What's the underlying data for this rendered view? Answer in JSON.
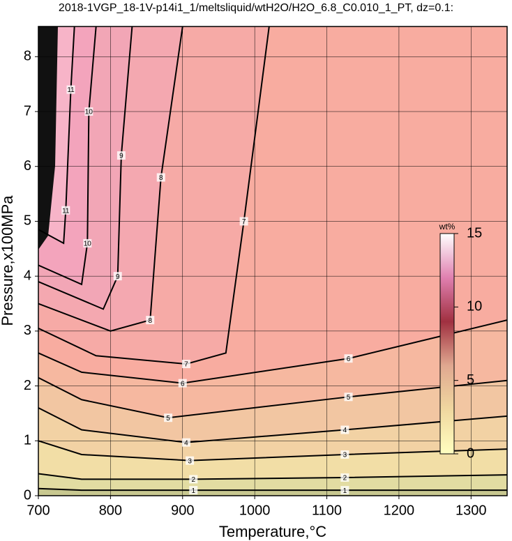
{
  "chart_data": {
    "type": "contour",
    "title": "2018-1VGP_18-1V-p14i1_1/meltsliquid/wtH2O/H2O_6.8_C0.010_1_PT, dz=0.1:",
    "x_label": "Temperature,°C",
    "y_label": "Pressure,x100MPa",
    "xlim": [
      700,
      1350
    ],
    "ylim": [
      0,
      8.55
    ],
    "xticks": [
      700,
      800,
      900,
      1000,
      1100,
      1200,
      1300
    ],
    "yticks": [
      0,
      1,
      2,
      3,
      4,
      5,
      6,
      7,
      8
    ],
    "grid": true,
    "background": "#f7b4c8",
    "contours": [
      {
        "level": 11,
        "color": "#f3a4bc",
        "x": [
          700,
          735,
          738,
          745,
          750
        ],
        "y": [
          4.85,
          4.6,
          5.2,
          7.4,
          8.55
        ]
      },
      {
        "level": 10,
        "color": "#f2a6b6",
        "x": [
          700,
          760,
          768,
          770,
          780
        ],
        "y": [
          4.2,
          3.85,
          4.6,
          7.0,
          8.55
        ]
      },
      {
        "level": 9,
        "color": "#f4a8b0",
        "x": [
          700,
          790,
          810,
          815,
          830
        ],
        "y": [
          3.9,
          3.4,
          4.0,
          6.2,
          8.55
        ]
      },
      {
        "level": 8,
        "color": "#f6aaa6",
        "x": [
          700,
          800,
          855,
          870,
          900
        ],
        "y": [
          3.5,
          3.0,
          3.2,
          5.8,
          8.55
        ]
      },
      {
        "level": 7,
        "color": "#f8aca0",
        "x": [
          700,
          780,
          905,
          960,
          985,
          1020
        ],
        "y": [
          3.05,
          2.55,
          2.4,
          2.6,
          5.0,
          8.55
        ]
      },
      {
        "level": 6,
        "color": "#f6b8a0",
        "x": [
          700,
          760,
          900,
          1130,
          1350
        ],
        "y": [
          2.6,
          2.25,
          2.05,
          2.5,
          3.2
        ]
      },
      {
        "level": 5,
        "color": "#f2c6a2",
        "x": [
          700,
          760,
          880,
          1130,
          1350
        ],
        "y": [
          2.15,
          1.75,
          1.42,
          1.8,
          2.1
        ]
      },
      {
        "level": 4,
        "color": "#f2d2a4",
        "x": [
          700,
          760,
          905,
          1125,
          1350
        ],
        "y": [
          1.6,
          1.2,
          0.97,
          1.2,
          1.45
        ]
      },
      {
        "level": 3,
        "color": "#f2dea6",
        "x": [
          700,
          760,
          910,
          1125,
          1350
        ],
        "y": [
          1.0,
          0.75,
          0.64,
          0.75,
          0.85
        ]
      },
      {
        "level": 2,
        "color": "#e2dca2",
        "x": [
          700,
          760,
          915,
          1125,
          1350
        ],
        "y": [
          0.4,
          0.3,
          0.3,
          0.33,
          0.38
        ]
      },
      {
        "level": 1,
        "color": "#c8c890",
        "x": [
          700,
          760,
          915,
          1125,
          1350
        ],
        "y": [
          0.13,
          0.1,
          0.1,
          0.1,
          0.1
        ]
      }
    ],
    "colorbar": {
      "label": "wt%",
      "lim": [
        0,
        15
      ],
      "ticks": [
        0,
        5,
        10,
        15
      ],
      "colors": [
        "#ffffc0",
        "#f0d8a0",
        "#e0a890",
        "#a03040",
        "#e080b0",
        "#ffffff"
      ]
    }
  }
}
